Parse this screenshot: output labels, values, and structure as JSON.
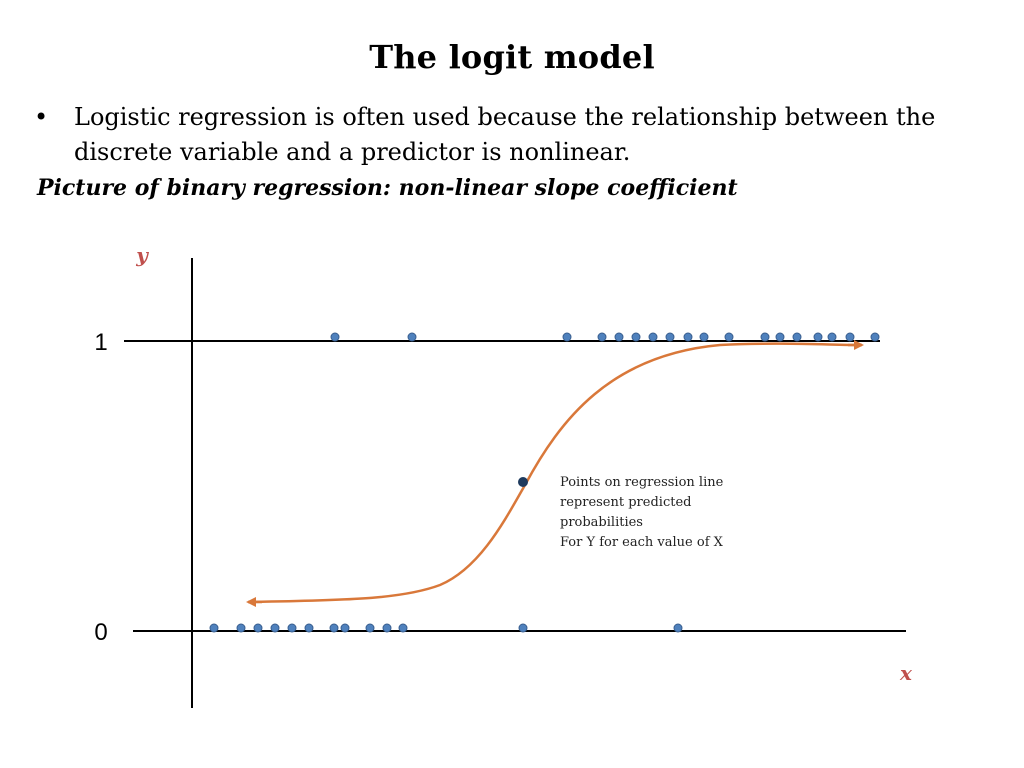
{
  "slide": {
    "title": "The logit model",
    "bullet_symbol": "•",
    "bullet_text": "Logistic regression is often used because the relationship between the discrete variable and a predictor is nonlinear.",
    "subtitle": "Picture of binary regression: non-linear slope coefficient"
  },
  "diagram": {
    "y_axis_label": "y",
    "x_axis_label": "x",
    "level_one_label": "1",
    "level_zero_label": "0",
    "annotation_lines": [
      "Points on regression line",
      "represent predicted",
      "probabilities",
      "For Y for each value of X"
    ],
    "colors": {
      "curve": "#d9783a",
      "points": "#4f81bd",
      "axis_letters": "#c0504d",
      "axes": "#000000"
    },
    "observations_at_one": [
      335,
      412,
      567,
      602,
      619,
      636,
      653,
      670,
      688,
      704,
      729,
      765,
      780,
      797,
      818,
      832,
      850,
      875
    ],
    "observations_at_zero": [
      214,
      241,
      258,
      275,
      292,
      309,
      334,
      345,
      370,
      387,
      403,
      523,
      678
    ],
    "highlight_point": 523
  }
}
